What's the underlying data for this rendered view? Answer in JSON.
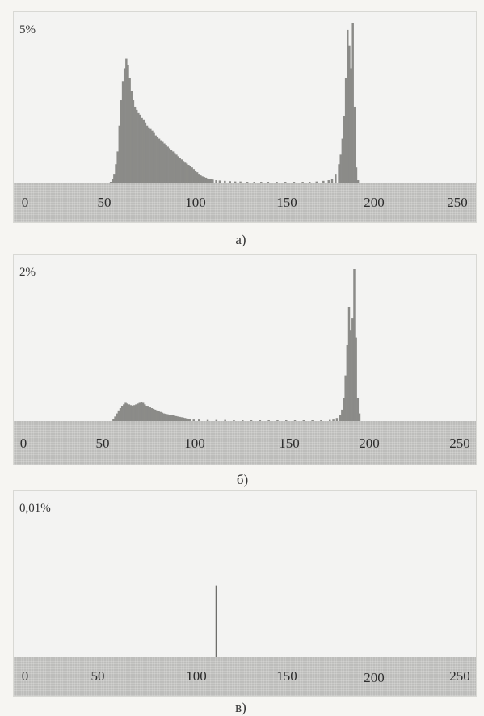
{
  "figure": {
    "bar_color": "#8b8b88",
    "panel_bg": "#f3f3f2",
    "axis_strip_color": "#bdbdbb"
  },
  "chart_data": [
    {
      "type": "bar",
      "id": "a",
      "scale_label": "5%",
      "caption": "а)",
      "x_ticks": [
        "0",
        "50",
        "100",
        "150",
        "200",
        "250"
      ],
      "xlim": [
        0,
        255
      ],
      "ylim": [
        0,
        5
      ],
      "bins": [
        [
          49,
          0.05
        ],
        [
          50,
          0.15
        ],
        [
          51,
          0.3
        ],
        [
          52,
          0.6
        ],
        [
          53,
          1.0
        ],
        [
          54,
          1.8
        ],
        [
          55,
          2.6
        ],
        [
          56,
          3.2
        ],
        [
          57,
          3.6
        ],
        [
          58,
          3.9
        ],
        [
          59,
          3.7
        ],
        [
          60,
          3.3
        ],
        [
          61,
          2.9
        ],
        [
          62,
          2.6
        ],
        [
          63,
          2.4
        ],
        [
          64,
          2.3
        ],
        [
          65,
          2.2
        ],
        [
          66,
          2.15
        ],
        [
          67,
          2.05
        ],
        [
          68,
          2.0
        ],
        [
          69,
          1.9
        ],
        [
          70,
          1.8
        ],
        [
          71,
          1.75
        ],
        [
          72,
          1.7
        ],
        [
          73,
          1.65
        ],
        [
          74,
          1.6
        ],
        [
          75,
          1.5
        ],
        [
          76,
          1.45
        ],
        [
          77,
          1.4
        ],
        [
          78,
          1.35
        ],
        [
          79,
          1.3
        ],
        [
          80,
          1.25
        ],
        [
          81,
          1.2
        ],
        [
          82,
          1.15
        ],
        [
          83,
          1.1
        ],
        [
          84,
          1.05
        ],
        [
          85,
          1.0
        ],
        [
          86,
          0.95
        ],
        [
          87,
          0.9
        ],
        [
          88,
          0.85
        ],
        [
          89,
          0.8
        ],
        [
          90,
          0.75
        ],
        [
          91,
          0.7
        ],
        [
          92,
          0.65
        ],
        [
          93,
          0.62
        ],
        [
          94,
          0.58
        ],
        [
          95,
          0.55
        ],
        [
          96,
          0.5
        ],
        [
          97,
          0.45
        ],
        [
          98,
          0.4
        ],
        [
          99,
          0.35
        ],
        [
          100,
          0.3
        ],
        [
          101,
          0.25
        ],
        [
          102,
          0.22
        ],
        [
          103,
          0.2
        ],
        [
          104,
          0.18
        ],
        [
          105,
          0.16
        ],
        [
          106,
          0.14
        ],
        [
          107,
          0.13
        ],
        [
          108,
          0.12
        ],
        [
          110,
          0.1
        ],
        [
          112,
          0.09
        ],
        [
          115,
          0.08
        ],
        [
          118,
          0.07
        ],
        [
          121,
          0.06
        ],
        [
          124,
          0.06
        ],
        [
          128,
          0.05
        ],
        [
          132,
          0.05
        ],
        [
          136,
          0.05
        ],
        [
          140,
          0.05
        ],
        [
          145,
          0.05
        ],
        [
          150,
          0.05
        ],
        [
          155,
          0.05
        ],
        [
          160,
          0.05
        ],
        [
          164,
          0.05
        ],
        [
          168,
          0.06
        ],
        [
          172,
          0.08
        ],
        [
          175,
          0.1
        ],
        [
          177,
          0.15
        ],
        [
          179,
          0.3
        ],
        [
          181,
          0.6
        ],
        [
          182,
          0.9
        ],
        [
          183,
          1.4
        ],
        [
          184,
          2.1
        ],
        [
          185,
          3.3
        ],
        [
          186,
          4.8
        ],
        [
          187,
          4.3
        ],
        [
          188,
          3.6
        ],
        [
          189,
          5.0
        ],
        [
          190,
          2.4
        ],
        [
          191,
          0.5
        ],
        [
          192,
          0.1
        ]
      ]
    },
    {
      "type": "bar",
      "id": "b",
      "scale_label": "2%",
      "caption": "б)",
      "x_ticks": [
        "0",
        "50",
        "100",
        "150",
        "200",
        "250"
      ],
      "xlim": [
        0,
        255
      ],
      "ylim": [
        0,
        2
      ],
      "bins": [
        [
          51,
          0.03
        ],
        [
          52,
          0.06
        ],
        [
          53,
          0.1
        ],
        [
          54,
          0.14
        ],
        [
          55,
          0.17
        ],
        [
          56,
          0.2
        ],
        [
          57,
          0.22
        ],
        [
          58,
          0.24
        ],
        [
          59,
          0.23
        ],
        [
          60,
          0.22
        ],
        [
          61,
          0.21
        ],
        [
          62,
          0.2
        ],
        [
          63,
          0.21
        ],
        [
          64,
          0.22
        ],
        [
          65,
          0.23
        ],
        [
          66,
          0.24
        ],
        [
          67,
          0.25
        ],
        [
          68,
          0.24
        ],
        [
          69,
          0.22
        ],
        [
          70,
          0.2
        ],
        [
          71,
          0.19
        ],
        [
          72,
          0.18
        ],
        [
          73,
          0.17
        ],
        [
          74,
          0.16
        ],
        [
          75,
          0.15
        ],
        [
          76,
          0.14
        ],
        [
          77,
          0.13
        ],
        [
          78,
          0.12
        ],
        [
          79,
          0.11
        ],
        [
          80,
          0.1
        ],
        [
          81,
          0.095
        ],
        [
          82,
          0.09
        ],
        [
          83,
          0.085
        ],
        [
          84,
          0.08
        ],
        [
          85,
          0.075
        ],
        [
          86,
          0.07
        ],
        [
          87,
          0.065
        ],
        [
          88,
          0.06
        ],
        [
          89,
          0.055
        ],
        [
          90,
          0.05
        ],
        [
          91,
          0.045
        ],
        [
          92,
          0.04
        ],
        [
          93,
          0.035
        ],
        [
          94,
          0.03
        ],
        [
          95,
          0.03
        ],
        [
          97,
          0.02
        ],
        [
          100,
          0.02
        ],
        [
          105,
          0.015
        ],
        [
          110,
          0.015
        ],
        [
          115,
          0.015
        ],
        [
          120,
          0.01
        ],
        [
          125,
          0.01
        ],
        [
          130,
          0.01
        ],
        [
          135,
          0.01
        ],
        [
          140,
          0.01
        ],
        [
          145,
          0.01
        ],
        [
          150,
          0.01
        ],
        [
          155,
          0.01
        ],
        [
          160,
          0.01
        ],
        [
          165,
          0.01
        ],
        [
          170,
          0.01
        ],
        [
          175,
          0.015
        ],
        [
          177,
          0.02
        ],
        [
          179,
          0.04
        ],
        [
          181,
          0.08
        ],
        [
          182,
          0.15
        ],
        [
          183,
          0.3
        ],
        [
          184,
          0.6
        ],
        [
          185,
          1.0
        ],
        [
          186,
          1.5
        ],
        [
          187,
          1.2
        ],
        [
          188,
          1.35
        ],
        [
          189,
          2.0
        ],
        [
          190,
          1.1
        ],
        [
          191,
          0.3
        ],
        [
          192,
          0.1
        ]
      ]
    },
    {
      "type": "bar",
      "id": "c",
      "scale_label": "0,01%",
      "caption": "в)",
      "x_ticks": [
        "0",
        "50",
        "100",
        "150",
        "200",
        "250"
      ],
      "xlim": [
        0,
        255
      ],
      "ylim": [
        0,
        0.01
      ],
      "bins": [
        [
          110,
          0.0047
        ]
      ]
    }
  ]
}
